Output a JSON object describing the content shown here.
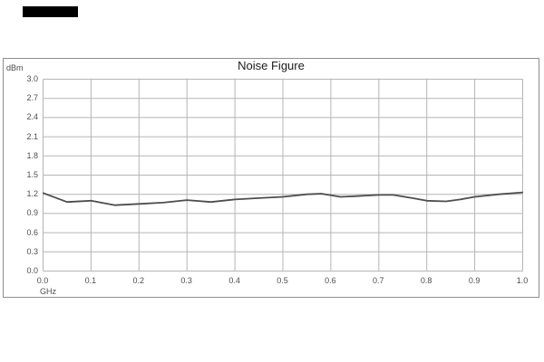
{
  "page": {
    "background": "#ffffff",
    "top_left_bar_color": "#000000"
  },
  "chart_data": {
    "type": "line",
    "title": "Noise Figure",
    "y_axis_label": "dBm",
    "x_axis_label": "GHz",
    "ylim": [
      0.0,
      3.0
    ],
    "xlim": [
      0.0,
      1.0
    ],
    "y_ticks": [
      "3.0",
      "2.7",
      "2.4",
      "2.1",
      "1.8",
      "1.5",
      "1.2",
      "0.9",
      "0.6",
      "0.3",
      "0.0"
    ],
    "x_ticks": [
      "0.0",
      "0.1",
      "0.2",
      "0.3",
      "0.4",
      "0.5",
      "0.6",
      "0.7",
      "0.8",
      "0.9",
      "1.0"
    ],
    "grid": true,
    "legend": "none",
    "series": [
      {
        "name": "Noise Figure",
        "x": [
          0.0,
          0.05,
          0.1,
          0.15,
          0.2,
          0.25,
          0.3,
          0.35,
          0.4,
          0.45,
          0.5,
          0.55,
          0.58,
          0.62,
          0.65,
          0.7,
          0.73,
          0.77,
          0.8,
          0.84,
          0.87,
          0.9,
          0.95,
          1.0
        ],
        "values": [
          1.22,
          1.08,
          1.1,
          1.03,
          1.05,
          1.07,
          1.11,
          1.08,
          1.12,
          1.14,
          1.16,
          1.2,
          1.21,
          1.16,
          1.17,
          1.19,
          1.19,
          1.14,
          1.1,
          1.09,
          1.12,
          1.16,
          1.2,
          1.23
        ]
      }
    ],
    "colors": {
      "line": "#4d4d4d",
      "grid": "#b5b5b5",
      "plot_border": "#aaaaaa",
      "tick_text": "#4d4d4d",
      "title_text": "#1a1a1a",
      "frame_border": "#8f8f8f"
    }
  }
}
